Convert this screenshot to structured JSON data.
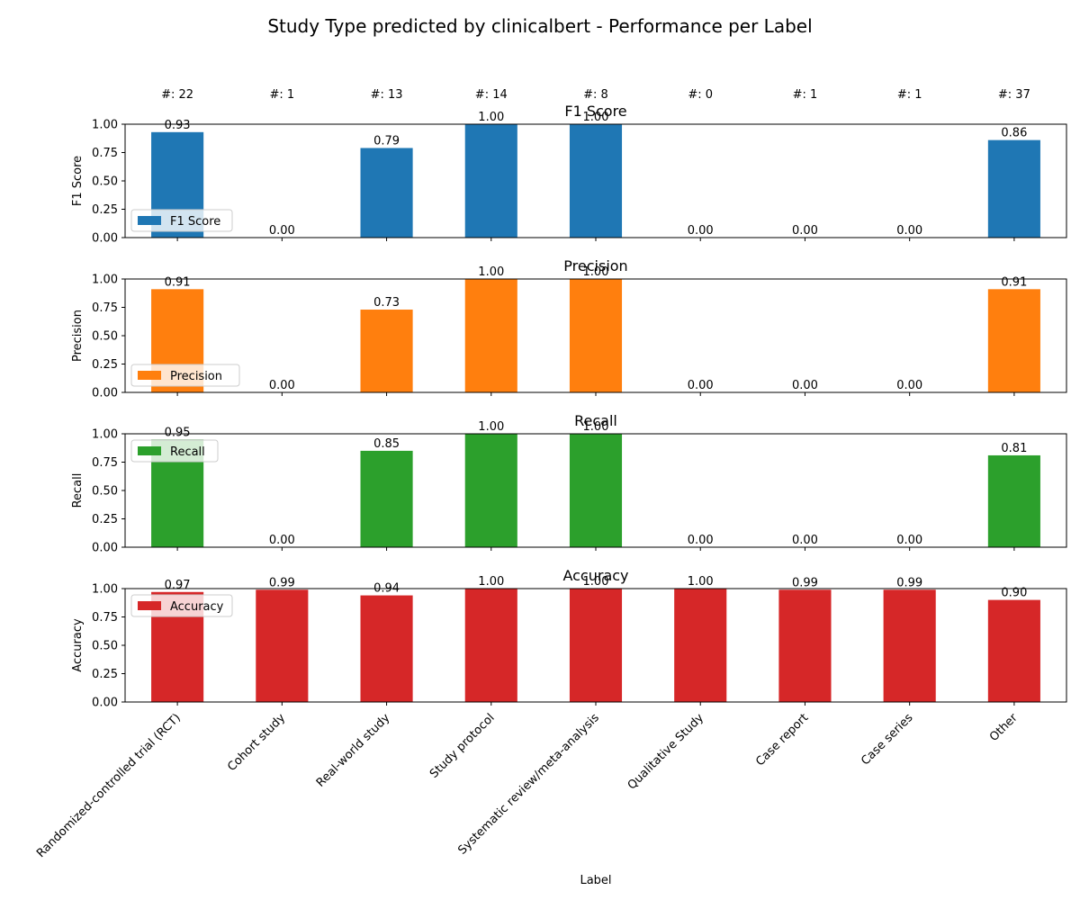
{
  "title": "Study Type predicted by clinicalbert - Performance per Label",
  "xlabel": "Label",
  "counts": [
    "#: 22",
    "#: 1",
    "#: 13",
    "#: 14",
    "#: 8",
    "#: 0",
    "#: 1",
    "#: 1",
    "#: 37"
  ],
  "chart_data": [
    {
      "type": "bar",
      "title": "F1 Score",
      "ylabel": "F1 Score",
      "legend": "F1 Score",
      "legend_position": "lower-left",
      "color": "#1f77b4",
      "ylim": [
        0,
        1
      ],
      "yticks": [
        "0.00",
        "0.25",
        "0.50",
        "0.75",
        "1.00"
      ],
      "categories": [
        "Randomized-controlled trial (RCT)",
        "Cohort study",
        "Real-world study",
        "Study protocol",
        "Systematic review/meta-analysis",
        "Qualitative Study",
        "Case report",
        "Case series",
        "Other"
      ],
      "values": [
        0.93,
        0.0,
        0.79,
        1.0,
        1.0,
        0.0,
        0.0,
        0.0,
        0.86
      ]
    },
    {
      "type": "bar",
      "title": "Precision",
      "ylabel": "Precision",
      "legend": "Precision",
      "legend_position": "lower-left",
      "color": "#ff7f0e",
      "ylim": [
        0,
        1
      ],
      "yticks": [
        "0.00",
        "0.25",
        "0.50",
        "0.75",
        "1.00"
      ],
      "categories": [
        "Randomized-controlled trial (RCT)",
        "Cohort study",
        "Real-world study",
        "Study protocol",
        "Systematic review/meta-analysis",
        "Qualitative Study",
        "Case report",
        "Case series",
        "Other"
      ],
      "values": [
        0.91,
        0.0,
        0.73,
        1.0,
        1.0,
        0.0,
        0.0,
        0.0,
        0.91
      ]
    },
    {
      "type": "bar",
      "title": "Recall",
      "ylabel": "Recall",
      "legend": "Recall",
      "legend_position": "upper-left",
      "color": "#2ca02c",
      "ylim": [
        0,
        1
      ],
      "yticks": [
        "0.00",
        "0.25",
        "0.50",
        "0.75",
        "1.00"
      ],
      "categories": [
        "Randomized-controlled trial (RCT)",
        "Cohort study",
        "Real-world study",
        "Study protocol",
        "Systematic review/meta-analysis",
        "Qualitative Study",
        "Case report",
        "Case series",
        "Other"
      ],
      "values": [
        0.95,
        0.0,
        0.85,
        1.0,
        1.0,
        0.0,
        0.0,
        0.0,
        0.81
      ]
    },
    {
      "type": "bar",
      "title": "Accuracy",
      "ylabel": "Accuracy",
      "legend": "Accuracy",
      "legend_position": "upper-left",
      "color": "#d62728",
      "ylim": [
        0,
        1
      ],
      "yticks": [
        "0.00",
        "0.25",
        "0.50",
        "0.75",
        "1.00"
      ],
      "categories": [
        "Randomized-controlled trial (RCT)",
        "Cohort study",
        "Real-world study",
        "Study protocol",
        "Systematic review/meta-analysis",
        "Qualitative Study",
        "Case report",
        "Case series",
        "Other"
      ],
      "values": [
        0.97,
        0.99,
        0.94,
        1.0,
        1.0,
        1.0,
        0.99,
        0.99,
        0.9
      ]
    }
  ]
}
